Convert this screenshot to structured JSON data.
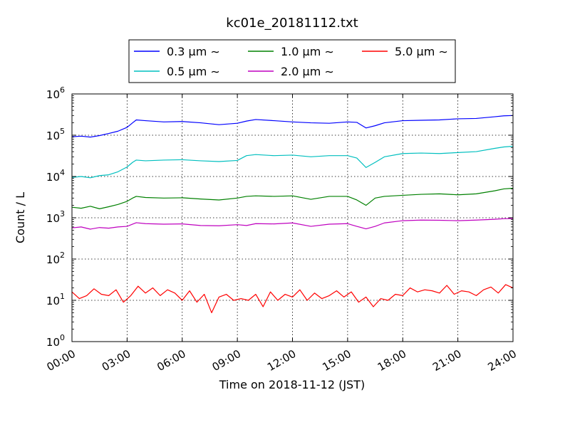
{
  "chart_data": {
    "type": "line",
    "title": "kc01e_20181112.txt",
    "xlabel": "Time on 2018-11-12 (JST)",
    "ylabel": "Count / L",
    "x_range_hours": [
      0,
      24
    ],
    "x_tick_labels": [
      "00:00",
      "03:00",
      "06:00",
      "09:00",
      "12:00",
      "15:00",
      "18:00",
      "21:00",
      "24:00"
    ],
    "y_scale": "log",
    "y_range": [
      1,
      1000000
    ],
    "y_ticks": [
      {
        "base": "10",
        "exp": "0",
        "value": 1
      },
      {
        "base": "10",
        "exp": "1",
        "value": 10
      },
      {
        "base": "10",
        "exp": "2",
        "value": 100
      },
      {
        "base": "10",
        "exp": "3",
        "value": 1000
      },
      {
        "base": "10",
        "exp": "4",
        "value": 10000
      },
      {
        "base": "10",
        "exp": "5",
        "value": 100000
      },
      {
        "base": "10",
        "exp": "6",
        "value": 1000000
      }
    ],
    "grid": true,
    "legend_position": "top-center",
    "legend_suffix": "∼",
    "series": [
      {
        "name": "0.3 μm",
        "color": "#0000ff",
        "points": [
          [
            0,
            92000
          ],
          [
            0.5,
            95000
          ],
          [
            1,
            90000
          ],
          [
            1.5,
            98000
          ],
          [
            2,
            110000
          ],
          [
            2.5,
            125000
          ],
          [
            3,
            155000
          ],
          [
            3.3,
            200000
          ],
          [
            3.5,
            235000
          ],
          [
            4,
            225000
          ],
          [
            5,
            210000
          ],
          [
            6,
            215000
          ],
          [
            7,
            200000
          ],
          [
            8,
            180000
          ],
          [
            9,
            195000
          ],
          [
            9.5,
            220000
          ],
          [
            10,
            240000
          ],
          [
            11,
            225000
          ],
          [
            12,
            210000
          ],
          [
            13,
            200000
          ],
          [
            14,
            195000
          ],
          [
            15,
            210000
          ],
          [
            15.5,
            205000
          ],
          [
            16,
            150000
          ],
          [
            16.5,
            170000
          ],
          [
            17,
            200000
          ],
          [
            18,
            225000
          ],
          [
            19,
            230000
          ],
          [
            20,
            235000
          ],
          [
            21,
            250000
          ],
          [
            22,
            255000
          ],
          [
            23,
            280000
          ],
          [
            23.5,
            295000
          ],
          [
            24,
            300000
          ]
        ]
      },
      {
        "name": "0.5 μm",
        "color": "#00bfbf",
        "points": [
          [
            0,
            9500
          ],
          [
            0.5,
            10000
          ],
          [
            1,
            9300
          ],
          [
            1.5,
            10500
          ],
          [
            2,
            11000
          ],
          [
            2.5,
            13000
          ],
          [
            3,
            17000
          ],
          [
            3.3,
            22000
          ],
          [
            3.5,
            25000
          ],
          [
            4,
            24000
          ],
          [
            5,
            25000
          ],
          [
            6,
            25500
          ],
          [
            7,
            24000
          ],
          [
            8,
            23000
          ],
          [
            9,
            24500
          ],
          [
            9.5,
            32000
          ],
          [
            10,
            34000
          ],
          [
            11,
            32000
          ],
          [
            12,
            33000
          ],
          [
            13,
            30000
          ],
          [
            14,
            32000
          ],
          [
            15,
            32000
          ],
          [
            15.5,
            28000
          ],
          [
            16,
            16500
          ],
          [
            16.5,
            22000
          ],
          [
            17,
            30000
          ],
          [
            18,
            36000
          ],
          [
            19,
            37000
          ],
          [
            20,
            36000
          ],
          [
            21,
            38000
          ],
          [
            22,
            40000
          ],
          [
            23,
            48000
          ],
          [
            23.5,
            52000
          ],
          [
            24,
            54000
          ]
        ]
      },
      {
        "name": "1.0 μm",
        "color": "#008000",
        "points": [
          [
            0,
            1800
          ],
          [
            0.5,
            1700
          ],
          [
            1,
            1900
          ],
          [
            1.5,
            1650
          ],
          [
            2,
            1850
          ],
          [
            2.5,
            2100
          ],
          [
            3,
            2500
          ],
          [
            3.3,
            3000
          ],
          [
            3.5,
            3300
          ],
          [
            4,
            3100
          ],
          [
            5,
            3000
          ],
          [
            6,
            3050
          ],
          [
            7,
            2850
          ],
          [
            8,
            2700
          ],
          [
            9,
            3000
          ],
          [
            9.5,
            3300
          ],
          [
            10,
            3400
          ],
          [
            11,
            3300
          ],
          [
            12,
            3400
          ],
          [
            13,
            2800
          ],
          [
            14,
            3300
          ],
          [
            15,
            3300
          ],
          [
            15.5,
            2700
          ],
          [
            16,
            2000
          ],
          [
            16.5,
            3000
          ],
          [
            17,
            3300
          ],
          [
            18,
            3500
          ],
          [
            19,
            3700
          ],
          [
            20,
            3800
          ],
          [
            21,
            3600
          ],
          [
            22,
            3800
          ],
          [
            23,
            4500
          ],
          [
            23.5,
            5000
          ],
          [
            24,
            5200
          ]
        ]
      },
      {
        "name": "2.0 μm",
        "color": "#bf00bf",
        "points": [
          [
            0,
            570
          ],
          [
            0.5,
            600
          ],
          [
            1,
            530
          ],
          [
            1.5,
            580
          ],
          [
            2,
            560
          ],
          [
            2.5,
            600
          ],
          [
            3,
            620
          ],
          [
            3.3,
            700
          ],
          [
            3.5,
            760
          ],
          [
            4,
            720
          ],
          [
            5,
            700
          ],
          [
            6,
            710
          ],
          [
            7,
            650
          ],
          [
            8,
            640
          ],
          [
            9,
            680
          ],
          [
            9.5,
            650
          ],
          [
            10,
            720
          ],
          [
            11,
            710
          ],
          [
            12,
            750
          ],
          [
            13,
            620
          ],
          [
            14,
            700
          ],
          [
            15,
            720
          ],
          [
            15.5,
            620
          ],
          [
            16,
            540
          ],
          [
            16.5,
            620
          ],
          [
            17,
            750
          ],
          [
            18,
            850
          ],
          [
            19,
            880
          ],
          [
            20,
            870
          ],
          [
            21,
            850
          ],
          [
            22,
            880
          ],
          [
            23,
            920
          ],
          [
            23.5,
            950
          ],
          [
            24,
            960
          ]
        ]
      },
      {
        "name": "5.0 μm",
        "color": "#ff0000",
        "points": [
          [
            0,
            16
          ],
          [
            0.4,
            11
          ],
          [
            0.8,
            13
          ],
          [
            1.2,
            19
          ],
          [
            1.6,
            14
          ],
          [
            2,
            13
          ],
          [
            2.4,
            18
          ],
          [
            2.8,
            9
          ],
          [
            3.2,
            13
          ],
          [
            3.6,
            22
          ],
          [
            4,
            15
          ],
          [
            4.4,
            20
          ],
          [
            4.8,
            13
          ],
          [
            5.2,
            18
          ],
          [
            5.6,
            15
          ],
          [
            6,
            10
          ],
          [
            6.4,
            17
          ],
          [
            6.8,
            9
          ],
          [
            7.2,
            14
          ],
          [
            7.6,
            5
          ],
          [
            8,
            12
          ],
          [
            8.4,
            14
          ],
          [
            8.8,
            10
          ],
          [
            9.2,
            11
          ],
          [
            9.6,
            10
          ],
          [
            10,
            14
          ],
          [
            10.4,
            7
          ],
          [
            10.8,
            16
          ],
          [
            11.2,
            10
          ],
          [
            11.6,
            14
          ],
          [
            12,
            12
          ],
          [
            12.4,
            18
          ],
          [
            12.8,
            10
          ],
          [
            13.2,
            15
          ],
          [
            13.6,
            11
          ],
          [
            14,
            13
          ],
          [
            14.4,
            17
          ],
          [
            14.8,
            12
          ],
          [
            15.2,
            16
          ],
          [
            15.6,
            9
          ],
          [
            16,
            12
          ],
          [
            16.4,
            7
          ],
          [
            16.8,
            11
          ],
          [
            17.2,
            10
          ],
          [
            17.6,
            14
          ],
          [
            18,
            13
          ],
          [
            18.4,
            20
          ],
          [
            18.8,
            16
          ],
          [
            19.2,
            18
          ],
          [
            19.6,
            17
          ],
          [
            20,
            15
          ],
          [
            20.4,
            23
          ],
          [
            20.8,
            14
          ],
          [
            21.2,
            17
          ],
          [
            21.6,
            16
          ],
          [
            22,
            13
          ],
          [
            22.4,
            18
          ],
          [
            22.8,
            21
          ],
          [
            23.2,
            15
          ],
          [
            23.6,
            24
          ],
          [
            24,
            20
          ]
        ]
      }
    ]
  }
}
